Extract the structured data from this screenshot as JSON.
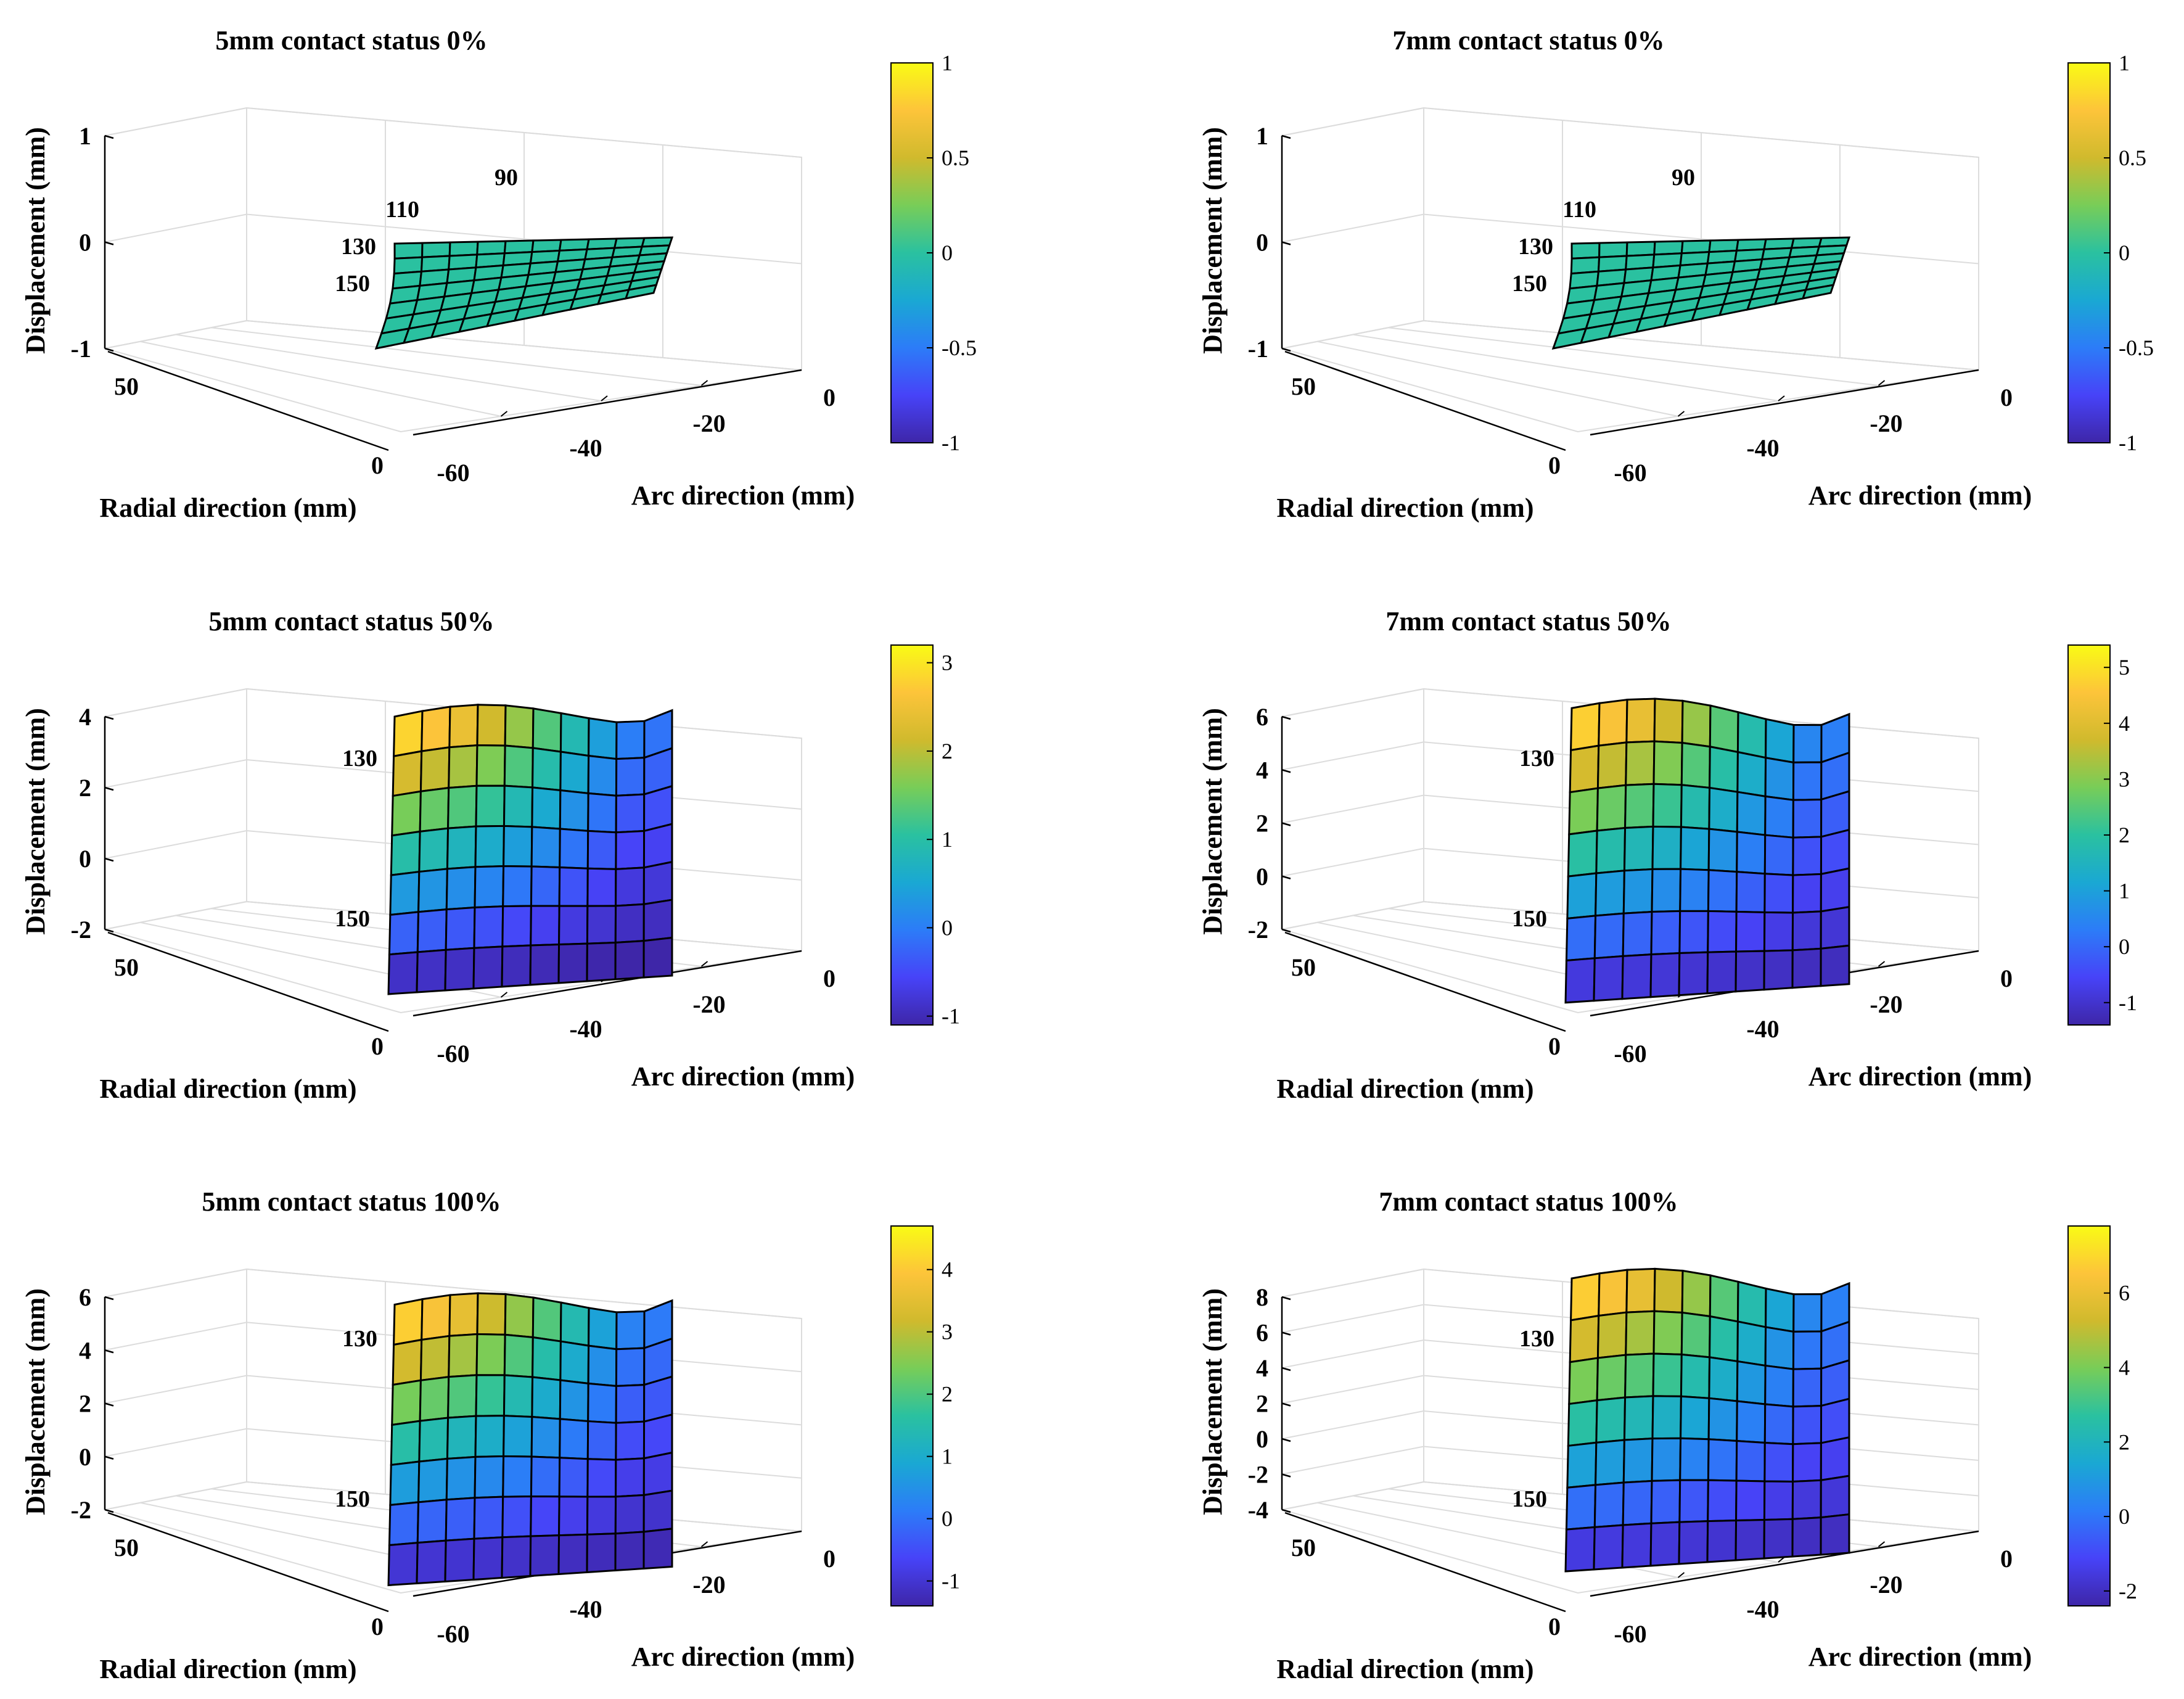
{
  "colorscale": [
    "#3e26a8",
    "#4743f8",
    "#2c7cf8",
    "#1aa8d3",
    "#2ac1a0",
    "#78cd58",
    "#d0ba2d",
    "#fdc43a",
    "#f9fb15"
  ],
  "chart_data": [
    {
      "type": "surface3d",
      "title": "5mm contact status 0%",
      "zlabel": "Displacement (mm)",
      "xlabel": "Arc direction (mm)",
      "ylabel": "Radial direction (mm)",
      "zlim": [
        -1,
        1
      ],
      "z_ticks": [
        "1",
        "0",
        "-1"
      ],
      "x_ticks": [
        "0",
        "-20",
        "-40",
        "-60"
      ],
      "y_ticks": [
        "50",
        "0"
      ],
      "colorbar_ticks": [
        "1",
        "0.5",
        "0",
        "-0.5",
        "-1"
      ],
      "radius_labels": [
        "90",
        "110",
        "130",
        "150"
      ],
      "shape": "flat",
      "peak": 0,
      "low": 0,
      "colorbar_range": [
        -1,
        1
      ]
    },
    {
      "type": "surface3d",
      "title": "7mm contact status 0%",
      "zlabel": "Displacement (mm)",
      "xlabel": "Arc direction (mm)",
      "ylabel": "Radial direction (mm)",
      "zlim": [
        -1,
        1
      ],
      "z_ticks": [
        "1",
        "0",
        "-1"
      ],
      "x_ticks": [
        "0",
        "-20",
        "-40",
        "-60"
      ],
      "y_ticks": [
        "50",
        "0"
      ],
      "colorbar_ticks": [
        "1",
        "0.5",
        "0",
        "-0.5",
        "-1"
      ],
      "radius_labels": [
        "90",
        "110",
        "130",
        "150"
      ],
      "shape": "flat",
      "peak": 0,
      "low": 0,
      "colorbar_range": [
        -1,
        1
      ]
    },
    {
      "type": "surface3d",
      "title": "5mm contact status 50%",
      "zlabel": "Displacement (mm)",
      "xlabel": "Arc direction (mm)",
      "ylabel": "Radial direction (mm)",
      "zlim": [
        -2,
        4
      ],
      "z_ticks": [
        "4",
        "2",
        "0",
        "-2"
      ],
      "x_ticks": [
        "0",
        "-20",
        "-40",
        "-60"
      ],
      "y_ticks": [
        "50",
        "0"
      ],
      "colorbar_ticks": [
        "3",
        "2",
        "1",
        "0",
        "-1"
      ],
      "radius_labels": [
        "130",
        "150"
      ],
      "shape": "dome",
      "peak": 3.2,
      "low": -1.2,
      "colorbar_range": [
        -1.1,
        3.2
      ]
    },
    {
      "type": "surface3d",
      "title": "7mm contact status 50%",
      "zlabel": "Displacement (mm)",
      "xlabel": "Arc direction (mm)",
      "ylabel": "Radial direction (mm)",
      "zlim": [
        -2,
        6
      ],
      "z_ticks": [
        "6",
        "4",
        "2",
        "0",
        "-2"
      ],
      "x_ticks": [
        "0",
        "-20",
        "-40",
        "-60"
      ],
      "y_ticks": [
        "50",
        "0"
      ],
      "colorbar_ticks": [
        "5",
        "4",
        "3",
        "2",
        "1",
        "0",
        "-1"
      ],
      "radius_labels": [
        "130",
        "150"
      ],
      "shape": "dome",
      "peak": 5.3,
      "low": -1.3,
      "colorbar_range": [
        -1.4,
        5.4
      ]
    },
    {
      "type": "surface3d",
      "title": "5mm contact status 100%",
      "zlabel": "Displacement (mm)",
      "xlabel": "Arc direction (mm)",
      "ylabel": "Radial direction (mm)",
      "zlim": [
        -2,
        6
      ],
      "z_ticks": [
        "6",
        "4",
        "2",
        "0",
        "-2"
      ],
      "x_ticks": [
        "0",
        "-20",
        "-40",
        "-60"
      ],
      "y_ticks": [
        "50",
        "0"
      ],
      "colorbar_ticks": [
        "4",
        "3",
        "2",
        "1",
        "0",
        "-1"
      ],
      "radius_labels": [
        "130",
        "150"
      ],
      "shape": "dome",
      "peak": 4.6,
      "low": -1.4,
      "colorbar_range": [
        -1.4,
        4.7
      ]
    },
    {
      "type": "surface3d",
      "title": "7mm contact status 100%",
      "zlabel": "Displacement (mm)",
      "xlabel": "Arc direction (mm)",
      "ylabel": "Radial direction (mm)",
      "zlim": [
        -4,
        8
      ],
      "z_ticks": [
        "8",
        "6",
        "4",
        "2",
        "0",
        "-2",
        "-4"
      ],
      "x_ticks": [
        "0",
        "-20",
        "-40",
        "-60"
      ],
      "y_ticks": [
        "50",
        "0"
      ],
      "colorbar_ticks": [
        "6",
        "4",
        "2",
        "0",
        "-2"
      ],
      "radius_labels": [
        "130",
        "150"
      ],
      "shape": "dome",
      "peak": 7.6,
      "low": -2.2,
      "colorbar_range": [
        -2.4,
        7.8
      ]
    }
  ]
}
